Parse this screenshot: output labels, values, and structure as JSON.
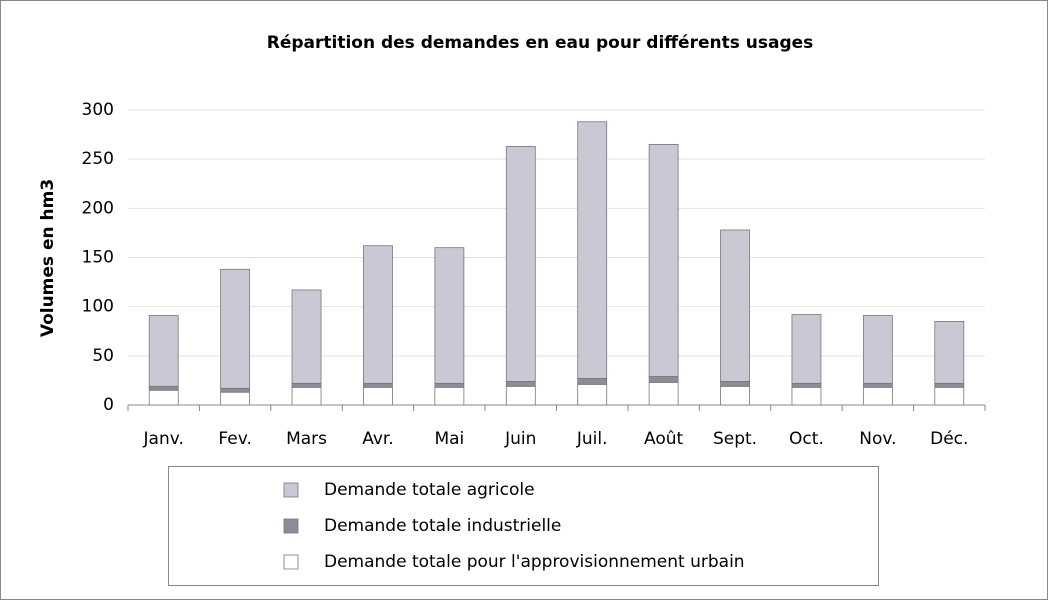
{
  "chart_data": {
    "type": "stacked_bar",
    "title": "Répartition des demandes en eau pour différents usages",
    "ylabel": "Volumes en hm3",
    "categories": [
      "Janv.",
      "Fev.",
      "Mars",
      "Avr.",
      "Mai",
      "Juin",
      "Juil.",
      "Août",
      "Sept.",
      "Oct.",
      "Nov.",
      "Déc."
    ],
    "series": [
      {
        "name": "Demande totale agricole",
        "color": "#c9c9d6",
        "values": [
          72,
          121,
          95,
          140,
          138,
          239,
          261,
          236,
          154,
          70,
          69,
          63
        ]
      },
      {
        "name": "Demande totale industrielle",
        "color": "#8c8c98",
        "values": [
          4,
          4,
          4,
          4,
          4,
          5,
          6,
          6,
          5,
          4,
          4,
          4
        ]
      },
      {
        "name": "Demande totale pour l'approvisionnement urbain",
        "color": "#ffffff",
        "values": [
          15,
          13,
          18,
          18,
          18,
          19,
          21,
          23,
          19,
          18,
          18,
          18
        ]
      }
    ],
    "ylim": [
      0,
      300
    ],
    "yticks": [
      0,
      50,
      100,
      150,
      200,
      250,
      300
    ],
    "grid": true
  }
}
